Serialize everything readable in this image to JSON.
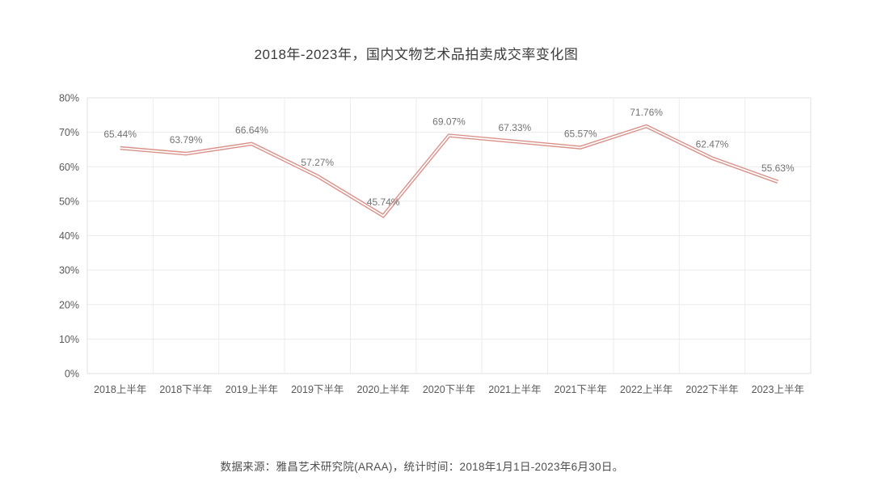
{
  "page": {
    "background": "#ffffff",
    "source_note": "数据来源：雅昌艺术研究院(ARAA)，统计时间：2018年1月1日-2023年6月30日。"
  },
  "chart_data": {
    "type": "line",
    "title": "2018年-2023年，国内文物艺术品拍卖成交率变化图",
    "categories": [
      "2018上半年",
      "2018下半年",
      "2019上半年",
      "2019下半年",
      "2020上半年",
      "2020下半年",
      "2021上半年",
      "2021下半年",
      "2022上半年",
      "2022下半年",
      "2023上半年"
    ],
    "values": [
      65.44,
      63.79,
      66.64,
      57.27,
      45.74,
      69.07,
      67.33,
      65.57,
      71.76,
      62.47,
      55.63
    ],
    "data_labels": [
      "65.44%",
      "63.79%",
      "66.64%",
      "57.27%",
      "45.74%",
      "69.07%",
      "67.33%",
      "65.57%",
      "71.76%",
      "62.47%",
      "55.63%"
    ],
    "xlabel": "",
    "ylabel": "",
    "ylim": [
      0,
      80
    ],
    "ytick_step": 10,
    "ytick_labels": [
      "0%",
      "10%",
      "20%",
      "30%",
      "40%",
      "50%",
      "60%",
      "70%",
      "80%"
    ],
    "grid": true,
    "legend": "none",
    "colors": {
      "line": "#da9189",
      "line_inner": "#ffffff",
      "grid": "#ebebeb",
      "border": "#e2e2e2",
      "tick_label": "#595959",
      "data_label": "#737373",
      "title": "#3b3b3b",
      "footer": "#4f4f4f"
    }
  }
}
